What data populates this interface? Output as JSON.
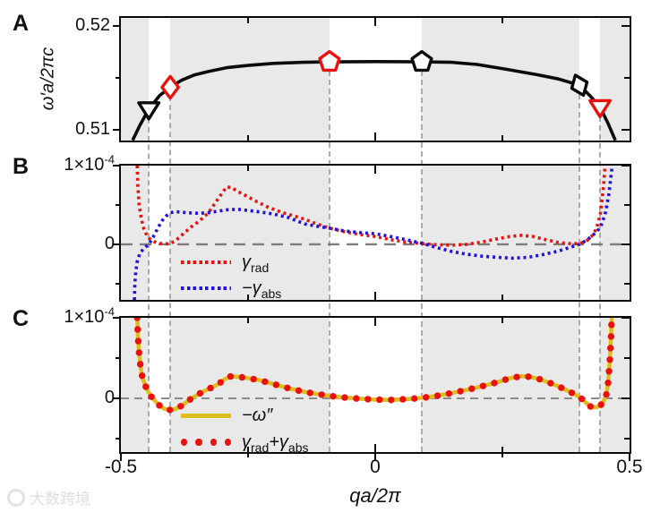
{
  "labels": {
    "panel_a": {
      "letter": "A",
      "ylabel": "ω′a/2πc",
      "ytick_top": "0.52",
      "ytick_bottom": "0.51"
    },
    "panel_b": {
      "letter": "B",
      "ytop_main": "1×10",
      "ytop_exp": "-4",
      "yzero": "0"
    },
    "panel_c": {
      "letter": "C",
      "ytop_main": "1×10",
      "ytop_exp": "-4",
      "yzero": "0"
    },
    "xaxis": {
      "tick_left": "-0.5",
      "tick_mid": "0",
      "tick_right": "0.5",
      "xlabel": "qa/2π"
    }
  },
  "legend_b": {
    "items": [
      {
        "sym": "γ",
        "sub": "rad"
      },
      {
        "sym": "−γ",
        "sub": "abs"
      }
    ]
  },
  "legend_c": {
    "items": [
      {
        "sym": "−ω″"
      },
      {
        "sym": "γ",
        "sub": "rad",
        "sym2": "+γ",
        "sub2": "abs"
      }
    ]
  },
  "watermark": {
    "text": "大数跨境"
  },
  "colors": {
    "curve_black": "#0b0b0b",
    "gamma_rad_red": "#e8110e",
    "gamma_abs_blue": "#2012d9",
    "omega_yellow": "#ddbe1c",
    "band_gray": "#e9e9e9",
    "zero_dash_gray": "#7d7d7d",
    "connector_gray": "#ababab"
  },
  "chart_data": {
    "xlim": [
      -0.5,
      0.5
    ],
    "xlabel": "qa/2π",
    "xticks_major": [
      -0.5,
      0,
      0.5
    ],
    "xticks_minor": [
      -0.25,
      0.25
    ],
    "shaded_bands_q": [
      [
        -0.5,
        -0.445
      ],
      [
        -0.403,
        -0.09
      ],
      [
        0.0915,
        0.4014
      ],
      [
        0.4419,
        0.5
      ]
    ],
    "connector_lines_q": [
      -0.445,
      -0.403,
      -0.09,
      0.0915,
      0.4014,
      0.4419
    ],
    "panels": [
      {
        "id": "A",
        "type": "line",
        "ylabel": "ω′a/2πc",
        "ylim": [
          0.50897,
          0.52078
        ],
        "yticks_major": [
          0.51,
          0.52
        ],
        "yticks_minor": [
          0.515
        ],
        "zero_line": false,
        "series": [
          {
            "name": "dispersion ω′a/2πc",
            "color": "#0b0b0b",
            "line": "solid",
            "width": 3.6,
            "points": [
              [
                -0.477,
                0.509
              ],
              [
                -0.463,
                0.5104
              ],
              [
                -0.445,
                0.512
              ],
              [
                -0.424,
                0.5133
              ],
              [
                -0.403,
                0.5141
              ],
              [
                -0.38,
                0.5148
              ],
              [
                -0.355,
                0.5153
              ],
              [
                -0.33,
                0.5156
              ],
              [
                -0.29,
                0.516
              ],
              [
                -0.25,
                0.5162
              ],
              [
                -0.2,
                0.5164
              ],
              [
                -0.14,
                0.5165
              ],
              [
                -0.09,
                0.51655
              ],
              [
                0.0,
                0.51657
              ],
              [
                0.0915,
                0.51655
              ],
              [
                0.15,
                0.5165
              ],
              [
                0.2,
                0.5163
              ],
              [
                0.25,
                0.5159
              ],
              [
                0.32,
                0.5153
              ],
              [
                0.36,
                0.5149
              ],
              [
                0.4014,
                0.5143
              ],
              [
                0.422,
                0.5133
              ],
              [
                0.4419,
                0.5122
              ],
              [
                0.458,
                0.5106
              ],
              [
                0.472,
                0.509
              ]
            ]
          }
        ],
        "markers": [
          {
            "shape": "triangle-down",
            "color": "#0b0b0b",
            "q": -0.445,
            "w": 0.512,
            "tilt": 0
          },
          {
            "shape": "diamond",
            "color": "#e8110e",
            "q": -0.403,
            "w": 0.5141,
            "tilt": 0
          },
          {
            "shape": "pentagon",
            "color": "#e8110e",
            "q": -0.09,
            "w": 0.51655,
            "tilt": 0
          },
          {
            "shape": "pentagon",
            "color": "#0b0b0b",
            "q": 0.0915,
            "w": 0.51655,
            "tilt": 0
          },
          {
            "shape": "diamond",
            "color": "#0b0b0b",
            "q": 0.4014,
            "w": 0.5143,
            "tilt": -22
          },
          {
            "shape": "triangle-down",
            "color": "#e8110e",
            "q": 0.4419,
            "w": 0.5122,
            "tilt": 0
          }
        ]
      },
      {
        "id": "B",
        "type": "line",
        "y_units": "1e-4",
        "ylim": [
          -0.705,
          1.0
        ],
        "yticks_major": [
          0,
          1.0
        ],
        "yticks_minor": [
          0.5,
          -0.5
        ],
        "zero_line": true,
        "series": [
          {
            "name": "γ_rad",
            "color": "#e8110e",
            "line": "dashed",
            "width": 3.6,
            "points": [
              [
                -0.468,
                1.0
              ],
              [
                -0.4665,
                0.72
              ],
              [
                -0.464,
                0.5
              ],
              [
                -0.46,
                0.33
              ],
              [
                -0.455,
                0.2
              ],
              [
                -0.448,
                0.1
              ],
              [
                -0.44,
                0.05
              ],
              [
                -0.428,
                0.015
              ],
              [
                -0.415,
                0.005
              ],
              [
                -0.403,
                0.01
              ],
              [
                -0.392,
                0.05
              ],
              [
                -0.378,
                0.13
              ],
              [
                -0.362,
                0.22
              ],
              [
                -0.345,
                0.3
              ],
              [
                -0.328,
                0.4
              ],
              [
                -0.312,
                0.55
              ],
              [
                -0.3,
                0.66
              ],
              [
                -0.292,
                0.73
              ],
              [
                -0.282,
                0.72
              ],
              [
                -0.27,
                0.67
              ],
              [
                -0.255,
                0.62
              ],
              [
                -0.235,
                0.55
              ],
              [
                -0.21,
                0.47
              ],
              [
                -0.185,
                0.41
              ],
              [
                -0.16,
                0.36
              ],
              [
                -0.139,
                0.32
              ],
              [
                -0.115,
                0.26
              ],
              [
                -0.09,
                0.205
              ],
              [
                -0.06,
                0.16
              ],
              [
                -0.03,
                0.125
              ],
              [
                0.0,
                0.1
              ],
              [
                0.03,
                0.06
              ],
              [
                0.06,
                0.03
              ],
              [
                0.0915,
                0.01
              ],
              [
                0.12,
                -0.005
              ],
              [
                0.15,
                -0.01
              ],
              [
                0.18,
                0.0
              ],
              [
                0.21,
                0.03
              ],
              [
                0.24,
                0.07
              ],
              [
                0.265,
                0.1
              ],
              [
                0.287,
                0.115
              ],
              [
                0.31,
                0.1
              ],
              [
                0.335,
                0.06
              ],
              [
                0.36,
                0.025
              ],
              [
                0.38,
                0.01
              ],
              [
                0.4014,
                0.01
              ],
              [
                0.415,
                0.04
              ],
              [
                0.425,
                0.1
              ],
              [
                0.435,
                0.2
              ],
              [
                0.443,
                0.4
              ],
              [
                0.449,
                0.75
              ],
              [
                0.452,
                1.0
              ]
            ]
          },
          {
            "name": "−γ_abs",
            "color": "#2012d9",
            "line": "dashed",
            "width": 3.6,
            "points": [
              [
                -0.4735,
                -0.705
              ],
              [
                -0.4725,
                -0.5
              ],
              [
                -0.471,
                -0.35
              ],
              [
                -0.468,
                -0.22
              ],
              [
                -0.463,
                -0.12
              ],
              [
                -0.455,
                -0.05
              ],
              [
                -0.445,
                0.0
              ],
              [
                -0.437,
                0.09
              ],
              [
                -0.428,
                0.2
              ],
              [
                -0.419,
                0.3
              ],
              [
                -0.411,
                0.36
              ],
              [
                -0.403,
                0.4
              ],
              [
                -0.394,
                0.415
              ],
              [
                -0.383,
                0.41
              ],
              [
                -0.368,
                0.4
              ],
              [
                -0.35,
                0.395
              ],
              [
                -0.33,
                0.4
              ],
              [
                -0.31,
                0.42
              ],
              [
                -0.29,
                0.44
              ],
              [
                -0.27,
                0.445
              ],
              [
                -0.25,
                0.43
              ],
              [
                -0.225,
                0.41
              ],
              [
                -0.2,
                0.385
              ],
              [
                -0.17,
                0.34
              ],
              [
                -0.139,
                0.26
              ],
              [
                -0.115,
                0.23
              ],
              [
                -0.09,
                0.205
              ],
              [
                -0.06,
                0.17
              ],
              [
                -0.03,
                0.15
              ],
              [
                0.0,
                0.135
              ],
              [
                0.03,
                0.1
              ],
              [
                0.06,
                0.06
              ],
              [
                0.0915,
                0.015
              ],
              [
                0.12,
                -0.04
              ],
              [
                0.15,
                -0.09
              ],
              [
                0.18,
                -0.125
              ],
              [
                0.21,
                -0.15
              ],
              [
                0.24,
                -0.165
              ],
              [
                0.27,
                -0.175
              ],
              [
                0.3,
                -0.165
              ],
              [
                0.33,
                -0.13
              ],
              [
                0.36,
                -0.085
              ],
              [
                0.38,
                -0.045
              ],
              [
                0.4014,
                0.0
              ],
              [
                0.415,
                0.05
              ],
              [
                0.425,
                0.1
              ],
              [
                0.435,
                0.16
              ],
              [
                0.443,
                0.22
              ],
              [
                0.452,
                0.38
              ],
              [
                0.459,
                0.62
              ],
              [
                0.464,
                0.9
              ],
              [
                0.466,
                1.0
              ]
            ]
          }
        ],
        "markers": []
      },
      {
        "id": "C",
        "type": "line",
        "y_units": "1e-4",
        "ylim": [
          -0.667,
          1.0
        ],
        "yticks_major": [
          0,
          1.0
        ],
        "yticks_minor": [
          0.5,
          -0.5
        ],
        "zero_line": true,
        "series": [
          {
            "name": "−ω″",
            "color": "#ddbe1c",
            "line": "solid",
            "width": 4.6,
            "dots_overlay": {
              "name": "γ_rad+γ_abs",
              "color": "#e8110e",
              "radius": 3.7,
              "spacing_px": 13
            },
            "points": [
              [
                -0.468,
                1.0
              ],
              [
                -0.4665,
                0.78
              ],
              [
                -0.4645,
                0.58
              ],
              [
                -0.4615,
                0.4
              ],
              [
                -0.458,
                0.27
              ],
              [
                -0.453,
                0.17
              ],
              [
                -0.447,
                0.09
              ],
              [
                -0.44,
                0.02
              ],
              [
                -0.433,
                -0.03
              ],
              [
                -0.424,
                -0.09
              ],
              [
                -0.414,
                -0.13
              ],
              [
                -0.403,
                -0.145
              ],
              [
                -0.392,
                -0.13
              ],
              [
                -0.38,
                -0.09
              ],
              [
                -0.368,
                -0.03
              ],
              [
                -0.358,
                0.01
              ],
              [
                -0.345,
                0.06
              ],
              [
                -0.33,
                0.11
              ],
              [
                -0.31,
                0.17
              ],
              [
                -0.295,
                0.24
              ],
              [
                -0.285,
                0.272
              ],
              [
                -0.27,
                0.268
              ],
              [
                -0.255,
                0.255
              ],
              [
                -0.23,
                0.23
              ],
              [
                -0.21,
                0.195
              ],
              [
                -0.19,
                0.16
              ],
              [
                -0.17,
                0.125
              ],
              [
                -0.15,
                0.095
              ],
              [
                -0.13,
                0.07
              ],
              [
                -0.11,
                0.05
              ],
              [
                -0.09,
                0.03
              ],
              [
                -0.06,
                0.01
              ],
              [
                -0.03,
                -0.005
              ],
              [
                0.0,
                -0.015
              ],
              [
                0.03,
                -0.02
              ],
              [
                0.06,
                -0.01
              ],
              [
                0.0915,
                0.005
              ],
              [
                0.12,
                0.03
              ],
              [
                0.15,
                0.065
              ],
              [
                0.18,
                0.105
              ],
              [
                0.21,
                0.15
              ],
              [
                0.24,
                0.2
              ],
              [
                0.262,
                0.245
              ],
              [
                0.287,
                0.275
              ],
              [
                0.3,
                0.27
              ],
              [
                0.32,
                0.245
              ],
              [
                0.34,
                0.2
              ],
              [
                0.36,
                0.15
              ],
              [
                0.38,
                0.09
              ],
              [
                0.4014,
                0.02
              ],
              [
                0.412,
                -0.04
              ],
              [
                0.424,
                -0.105
              ],
              [
                0.435,
                -0.11
              ],
              [
                0.4419,
                -0.095
              ],
              [
                0.449,
                -0.04
              ],
              [
                0.4545,
                0.05
              ],
              [
                0.458,
                0.2
              ],
              [
                0.461,
                0.45
              ],
              [
                0.4635,
                0.75
              ],
              [
                0.465,
                1.0
              ]
            ]
          }
        ],
        "markers": []
      }
    ]
  }
}
